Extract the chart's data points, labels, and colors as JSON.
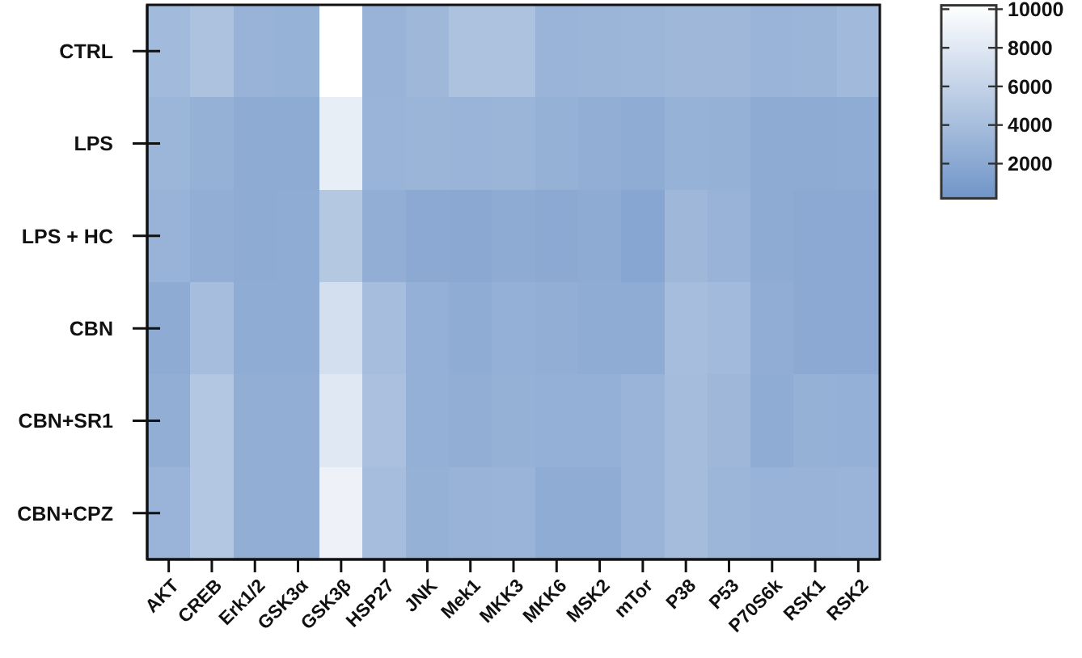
{
  "chart_data": {
    "type": "heatmap",
    "categories": [
      "AKT",
      "CREB",
      "Erk1/2",
      "GSK3α",
      "GSK3β",
      "HSP27",
      "JNK",
      "Mek1",
      "MKK3",
      "MKK6",
      "MSK2",
      "mTor",
      "P38",
      "P53",
      "P70S6k",
      "RSK1",
      "RSK2"
    ],
    "y_categories": [
      "CTRL",
      "LPS",
      "LPS + HC",
      "CBN",
      "CBN+SR1",
      "CBN+CPZ"
    ],
    "cells": [
      [
        3700,
        4400,
        3000,
        2900,
        10200,
        3000,
        3500,
        4400,
        4400,
        3100,
        3200,
        3300,
        3500,
        3500,
        3100,
        3200,
        3600
      ],
      [
        3300,
        2800,
        2300,
        2300,
        8600,
        3100,
        3200,
        3100,
        3200,
        2800,
        2600,
        2400,
        2900,
        2800,
        2300,
        2300,
        2400
      ],
      [
        3000,
        2600,
        2300,
        2400,
        5000,
        2600,
        2100,
        2000,
        2300,
        2100,
        2300,
        1800,
        3500,
        3000,
        2300,
        2100,
        2100
      ],
      [
        2300,
        4000,
        2400,
        2400,
        7100,
        4000,
        2700,
        2400,
        2700,
        2600,
        2400,
        2400,
        4000,
        3700,
        2500,
        2100,
        2100
      ],
      [
        2600,
        4900,
        2600,
        2600,
        8000,
        4300,
        2700,
        2600,
        2800,
        2700,
        2700,
        3100,
        3900,
        3500,
        2400,
        2800,
        2700
      ],
      [
        3100,
        4900,
        2600,
        2600,
        9000,
        4000,
        2800,
        3000,
        3100,
        2400,
        2400,
        3100,
        3900,
        3300,
        3000,
        3000,
        3100
      ]
    ],
    "clim": [
      200,
      10200
    ],
    "cticks": [
      2000,
      4000,
      6000,
      8000,
      10000
    ],
    "colors": [
      "#7095c8",
      "#ffffff"
    ]
  }
}
